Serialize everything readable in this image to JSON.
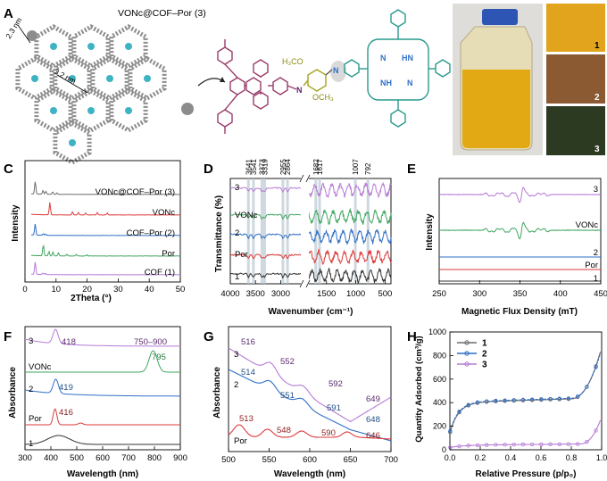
{
  "panel_labels": {
    "A": "A",
    "B": "B",
    "C": "C",
    "D": "D",
    "E": "E",
    "F": "F",
    "G": "G",
    "H": "H"
  },
  "panelA": {
    "title": "VONc@COF–Por (3)",
    "dim_small": "2.3 nm",
    "dim_large": "3.2 nm",
    "struct_labels": {
      "N_imine": "N",
      "H3CO": "H₃CO",
      "OCH3": "OCH₃",
      "N_pyr": "N",
      "N_por1": "N",
      "HN": "HN",
      "NH": "NH",
      "N_por2": "N"
    }
  },
  "panelB": {
    "samples": [
      "1",
      "2",
      "3"
    ]
  },
  "colors": {
    "purple": "#b57ad6",
    "green": "#3fa65f",
    "blue": "#2f6fc7",
    "red": "#de3a3a",
    "black": "#333333",
    "gray": "#6d6d6d",
    "dpurple": "#5b2a6e",
    "dblue": "#234f88",
    "ddred": "#8b1c1c"
  },
  "chart_data": [
    {
      "id": "C",
      "type": "line",
      "xlabel": "2Theta (°)",
      "ylabel": "Intensity",
      "xlim": [
        0,
        50
      ],
      "xticks": [
        0,
        10,
        20,
        30,
        40,
        50
      ],
      "series": [
        {
          "name": "VONc@COF–Por (3)",
          "color": "#b57ad6",
          "offset": 4,
          "peaks": [
            [
              3.3,
              1.0
            ],
            [
              5.8,
              0.12
            ],
            [
              6.6,
              0.1
            ]
          ]
        },
        {
          "name": "VONc",
          "color": "#3fa65f",
          "offset": 3,
          "peaks": [
            [
              5.9,
              0.9
            ],
            [
              7.7,
              0.35
            ],
            [
              9.0,
              0.3
            ],
            [
              10.8,
              0.25
            ],
            [
              13.5,
              0.15
            ],
            [
              16.5,
              0.12
            ],
            [
              20.0,
              0.1
            ]
          ]
        },
        {
          "name": "COF–Por (2)",
          "color": "#2f6fc7",
          "offset": 2,
          "peaks": [
            [
              3.3,
              0.9
            ],
            [
              5.9,
              0.12
            ],
            [
              6.7,
              0.1
            ]
          ]
        },
        {
          "name": "Por",
          "color": "#de3a3a",
          "offset": 1,
          "peaks": [
            [
              8.0,
              1.0
            ],
            [
              15.3,
              0.25
            ],
            [
              17.2,
              0.2
            ],
            [
              19.5,
              0.15
            ],
            [
              23.3,
              0.2
            ],
            [
              26.5,
              0.15
            ]
          ]
        },
        {
          "name": "COF (1)",
          "color": "#6d6d6d",
          "offset": 0,
          "peaks": [
            [
              3.3,
              1.0
            ],
            [
              5.8,
              0.3
            ],
            [
              6.7,
              0.25
            ],
            [
              8.9,
              0.2
            ],
            [
              10.3,
              0.12
            ]
          ]
        }
      ]
    },
    {
      "id": "D",
      "type": "line",
      "xlabel": "Wavenumber (cm⁻¹)",
      "ylabel": "Transmittance (%)",
      "xticks": [
        "4000",
        "3500",
        "3000",
        "1500",
        "1000",
        "500"
      ],
      "marker_lines": [
        "3641",
        "3541",
        "3373",
        "3319",
        "2955",
        "2864",
        "1682",
        "1617",
        "1007",
        "792"
      ],
      "series": [
        {
          "name": "3",
          "color": "#b57ad6",
          "offset": 4
        },
        {
          "name": "VONc",
          "color": "#3fa65f",
          "offset": 3
        },
        {
          "name": "2",
          "color": "#2f6fc7",
          "offset": 2
        },
        {
          "name": "Por",
          "color": "#de3a3a",
          "offset": 1
        },
        {
          "name": "1",
          "color": "#333333",
          "offset": 0
        }
      ]
    },
    {
      "id": "E",
      "type": "line",
      "xlabel": "Magnetic Flux Density (mT)",
      "ylabel": "Intensity",
      "xlim": [
        250,
        450
      ],
      "xticks": [
        250,
        300,
        350,
        400,
        450
      ],
      "series": [
        {
          "name": "3",
          "color": "#b57ad6"
        },
        {
          "name": "VONc",
          "color": "#3fa65f"
        },
        {
          "name": "2",
          "color": "#2f6fc7"
        },
        {
          "name": "Por",
          "color": "#de3a3a"
        },
        {
          "name": "1",
          "color": "#333333"
        }
      ]
    },
    {
      "id": "F",
      "type": "line",
      "xlabel": "Wavelength (nm)",
      "ylabel": "Absorbance",
      "xlim": [
        300,
        900
      ],
      "xticks": [
        300,
        400,
        500,
        600,
        700,
        800,
        900
      ],
      "series": [
        {
          "name": "3",
          "color": "#b57ad6",
          "annotations": [
            "418",
            "750–900"
          ]
        },
        {
          "name": "VONc",
          "color": "#3fa65f",
          "annotations": [
            "795"
          ]
        },
        {
          "name": "2",
          "color": "#2f6fc7",
          "annotations": [
            "419"
          ]
        },
        {
          "name": "Por",
          "color": "#de3a3a",
          "annotations": [
            "416"
          ]
        },
        {
          "name": "1",
          "color": "#333333",
          "annotations": []
        }
      ]
    },
    {
      "id": "G",
      "type": "line",
      "xlabel": "Wavelength (nm)",
      "ylabel": "Absorbance",
      "xlim": [
        500,
        700
      ],
      "xticks": [
        500,
        550,
        600,
        650,
        700
      ],
      "series": [
        {
          "name": "3",
          "color": "#b57ad6",
          "peaks": [
            "516",
            "552",
            "592",
            "649"
          ]
        },
        {
          "name": "2",
          "color": "#2f6fc7",
          "peaks": [
            "514",
            "551",
            "591",
            "648"
          ]
        },
        {
          "name": "Por",
          "color": "#de3a3a",
          "peaks": [
            "513",
            "548",
            "590",
            "646"
          ]
        }
      ]
    },
    {
      "id": "H",
      "type": "line",
      "xlabel": "Relative Pressure (p/p₀)",
      "ylabel": "Quantity Adsorbed (cm³/g)",
      "xlim": [
        0,
        1
      ],
      "ylim": [
        0,
        1000
      ],
      "xticks": [
        "0.0",
        "0.2",
        "0.4",
        "0.6",
        "0.8",
        "1.0"
      ],
      "yticks": [
        "0",
        "200",
        "400",
        "600",
        "800",
        "1000"
      ],
      "legend": "top-left",
      "series": [
        {
          "name": "1",
          "color": "#6d6d6d"
        },
        {
          "name": "2",
          "color": "#2f6fc7"
        },
        {
          "name": "3",
          "color": "#b57ad6"
        }
      ]
    }
  ]
}
